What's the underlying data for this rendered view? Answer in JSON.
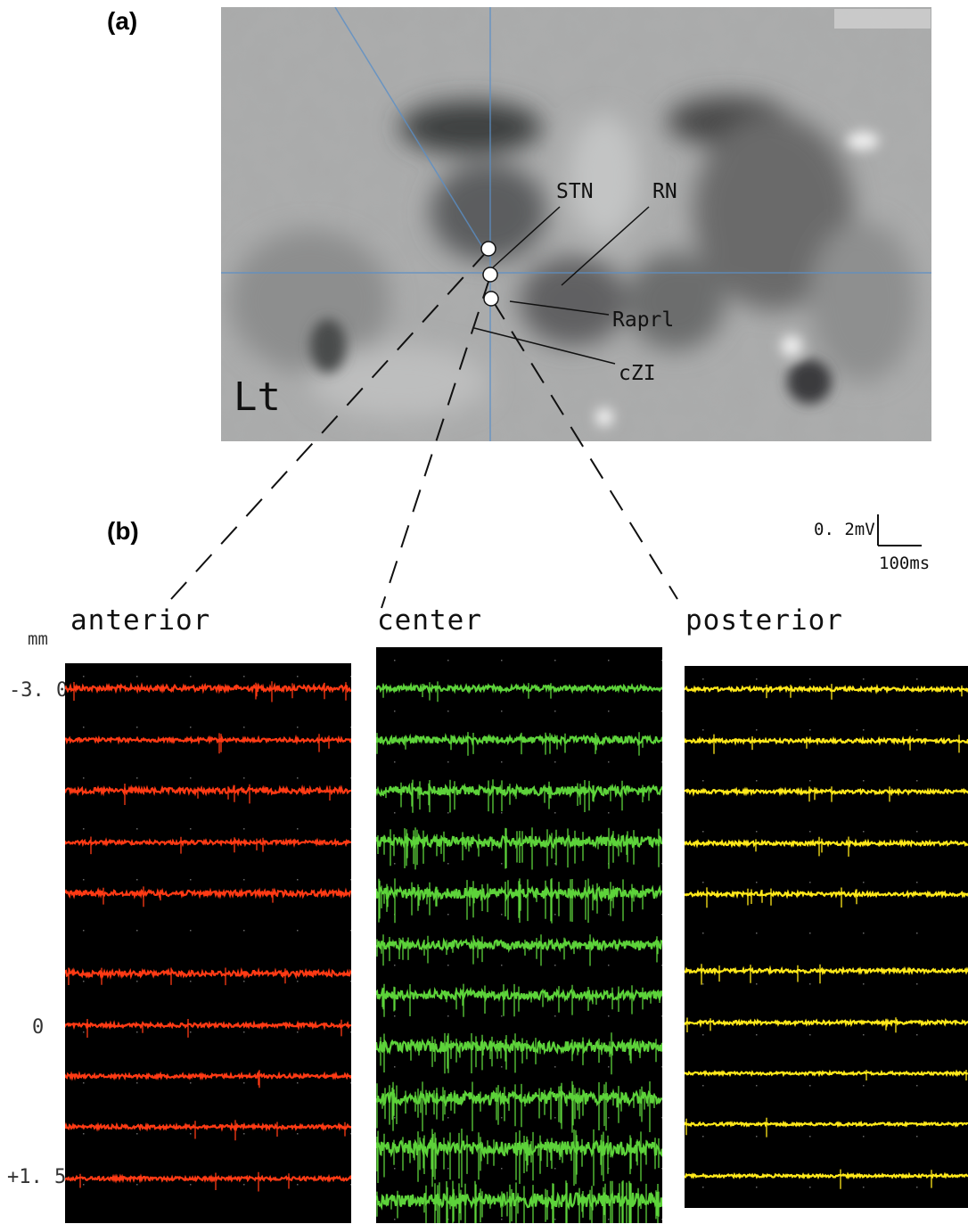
{
  "panels": {
    "a_label": "(a)",
    "b_label": "(b)"
  },
  "mri": {
    "side_label": "Lt",
    "structures": [
      "STN",
      "RN",
      "Raprl",
      "cZI"
    ]
  },
  "scale_bar": {
    "voltage": "0. 2mV",
    "time": "100ms"
  },
  "recordings": {
    "unit": "mm",
    "depth_labels": [
      "-3. 0",
      "0",
      "+1. 5"
    ],
    "tracks": [
      {
        "name": "anterior",
        "color": "#ff3a14",
        "traces": 10,
        "noise": [
          3,
          2,
          3,
          2,
          3,
          3,
          2,
          2,
          2,
          2
        ],
        "spike_rate": [
          0.6,
          0.3,
          0.5,
          0.4,
          0.3,
          0.4,
          0.3,
          0.2,
          0.3,
          0.3
        ]
      },
      {
        "name": "center",
        "color": "#5dd23a",
        "traces": 11,
        "noise": [
          3,
          4,
          5,
          6,
          6,
          5,
          5,
          6,
          7,
          8,
          8
        ],
        "spike_rate": [
          0.5,
          1.2,
          2.5,
          3.5,
          4,
          2,
          2.5,
          3.5,
          5,
          6,
          6
        ]
      },
      {
        "name": "posterior",
        "color": "#ffe81a",
        "traces": 10,
        "noise": [
          2,
          2,
          2,
          2,
          2,
          2,
          2,
          1.5,
          1.5,
          1.5
        ],
        "spike_rate": [
          0.3,
          0.4,
          0.3,
          0.3,
          0.6,
          0.4,
          0.3,
          0.2,
          0.2,
          0.2
        ]
      }
    ]
  }
}
